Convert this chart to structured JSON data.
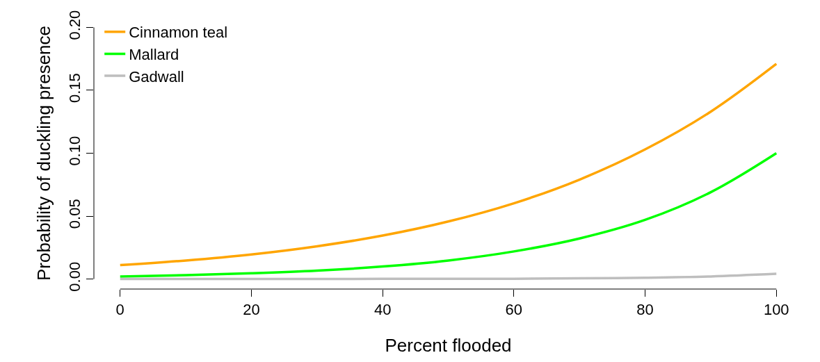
{
  "chart_data": {
    "type": "line",
    "xlabel": "Percent flooded",
    "ylabel": "Probability of duckling presence",
    "x": [
      0,
      10,
      20,
      30,
      40,
      50,
      60,
      70,
      80,
      90,
      100
    ],
    "series": [
      {
        "name": "Cinnamon teal",
        "color": "#ffa500",
        "values": [
          0.011,
          0.0147,
          0.0195,
          0.026,
          0.0345,
          0.0457,
          0.0602,
          0.079,
          0.103,
          0.133,
          0.171
        ]
      },
      {
        "name": "Mallard",
        "color": "#00ff00",
        "values": [
          0.002,
          0.003,
          0.0045,
          0.0066,
          0.0099,
          0.0147,
          0.0219,
          0.0322,
          0.047,
          0.069,
          0.1
        ]
      },
      {
        "name": "Gadwall",
        "color": "#bebebe",
        "values": [
          0,
          0,
          0,
          0,
          0.0001,
          0.0001,
          0.0002,
          0.0005,
          0.001,
          0.002,
          0.0041
        ]
      }
    ],
    "xlim": [
      0,
      100
    ],
    "ylim": [
      0,
      0.2
    ],
    "xticks": [
      0,
      20,
      40,
      60,
      80,
      100
    ],
    "yticks": [
      {
        "value": 0,
        "label": "0.00"
      },
      {
        "value": 0.05,
        "label": "0.05"
      },
      {
        "value": 0.1,
        "label": "0.10"
      },
      {
        "value": 0.15,
        "label": "0.15"
      },
      {
        "value": 0.2,
        "label": "0.20"
      }
    ],
    "grid": false,
    "legend": "top left",
    "marker": "none",
    "line_style": "solid"
  }
}
